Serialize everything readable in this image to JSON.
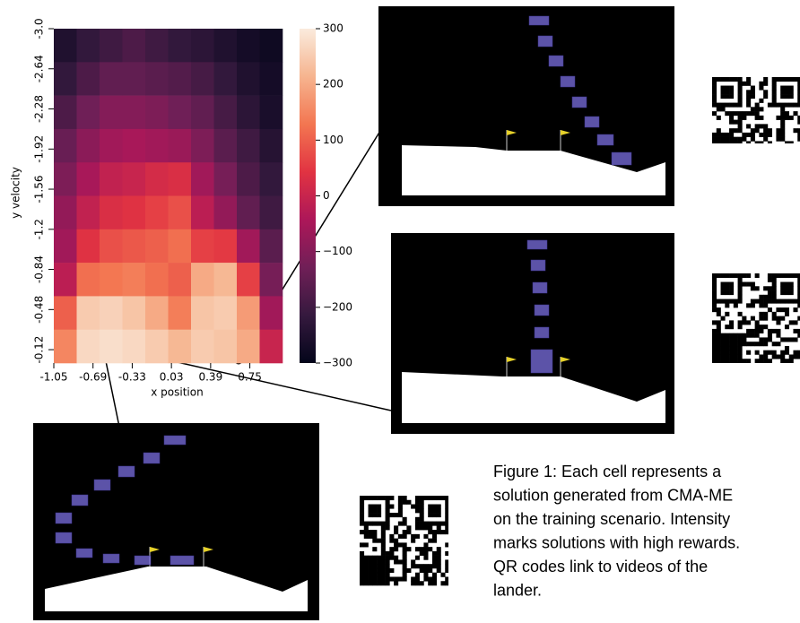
{
  "chart_data": {
    "type": "heatmap",
    "x_label": "x position",
    "y_label": "y velocity",
    "xlim": [
      -1.05,
      1.05
    ],
    "ylim": [
      0,
      -3
    ],
    "xticks": [
      -1.05,
      -0.69,
      -0.33,
      0.03,
      0.39,
      0.75
    ],
    "yticks": [
      {
        "value": -3,
        "label": "-3.0"
      },
      -2.64,
      -2.28,
      -1.92,
      -1.56,
      -1.2,
      -0.84,
      -0.48,
      -0.12
    ],
    "values": [
      [
        -250,
        -220,
        -200,
        -180,
        -200,
        -220,
        -230,
        -250,
        -270,
        -280
      ],
      [
        -220,
        -180,
        -150,
        -150,
        -160,
        -170,
        -190,
        -220,
        -250,
        -270
      ],
      [
        -180,
        -130,
        -100,
        -100,
        -110,
        -130,
        -150,
        -190,
        -230,
        -260
      ],
      [
        -140,
        -90,
        -60,
        -50,
        -60,
        -70,
        -110,
        -160,
        -200,
        -240
      ],
      [
        -110,
        -50,
        -10,
        0,
        20,
        30,
        -60,
        -120,
        -180,
        -220
      ],
      [
        -80,
        -10,
        30,
        40,
        60,
        80,
        -20,
        -80,
        -150,
        -200
      ],
      [
        -60,
        40,
        80,
        90,
        100,
        120,
        60,
        50,
        -60,
        -160
      ],
      [
        -20,
        120,
        130,
        140,
        120,
        100,
        200,
        220,
        60,
        -120
      ],
      [
        100,
        250,
        260,
        240,
        200,
        140,
        240,
        250,
        180,
        -60
      ],
      [
        150,
        270,
        280,
        270,
        250,
        220,
        250,
        240,
        200,
        0
      ]
    ],
    "colorbar": {
      "lim": [
        -300,
        300
      ],
      "ticks": [
        300,
        200,
        100,
        0,
        {
          "value": -100,
          "label": "−100"
        },
        {
          "value": -200,
          "label": "−200"
        },
        {
          "value": -300,
          "label": "−300"
        }
      ],
      "colors": [
        "#03051a",
        "#35193e",
        "#701f57",
        "#ad1759",
        "#e13342",
        "#f37651",
        "#f6b48f",
        "#faebdd"
      ]
    }
  },
  "caption": [
    "Figure 1: Each cell represents a",
    "solution generated from CMA-ME",
    "on the training scenario. Intensity",
    "marks solutions with high rewards.",
    "QR codes link to videos of the",
    "lander."
  ]
}
